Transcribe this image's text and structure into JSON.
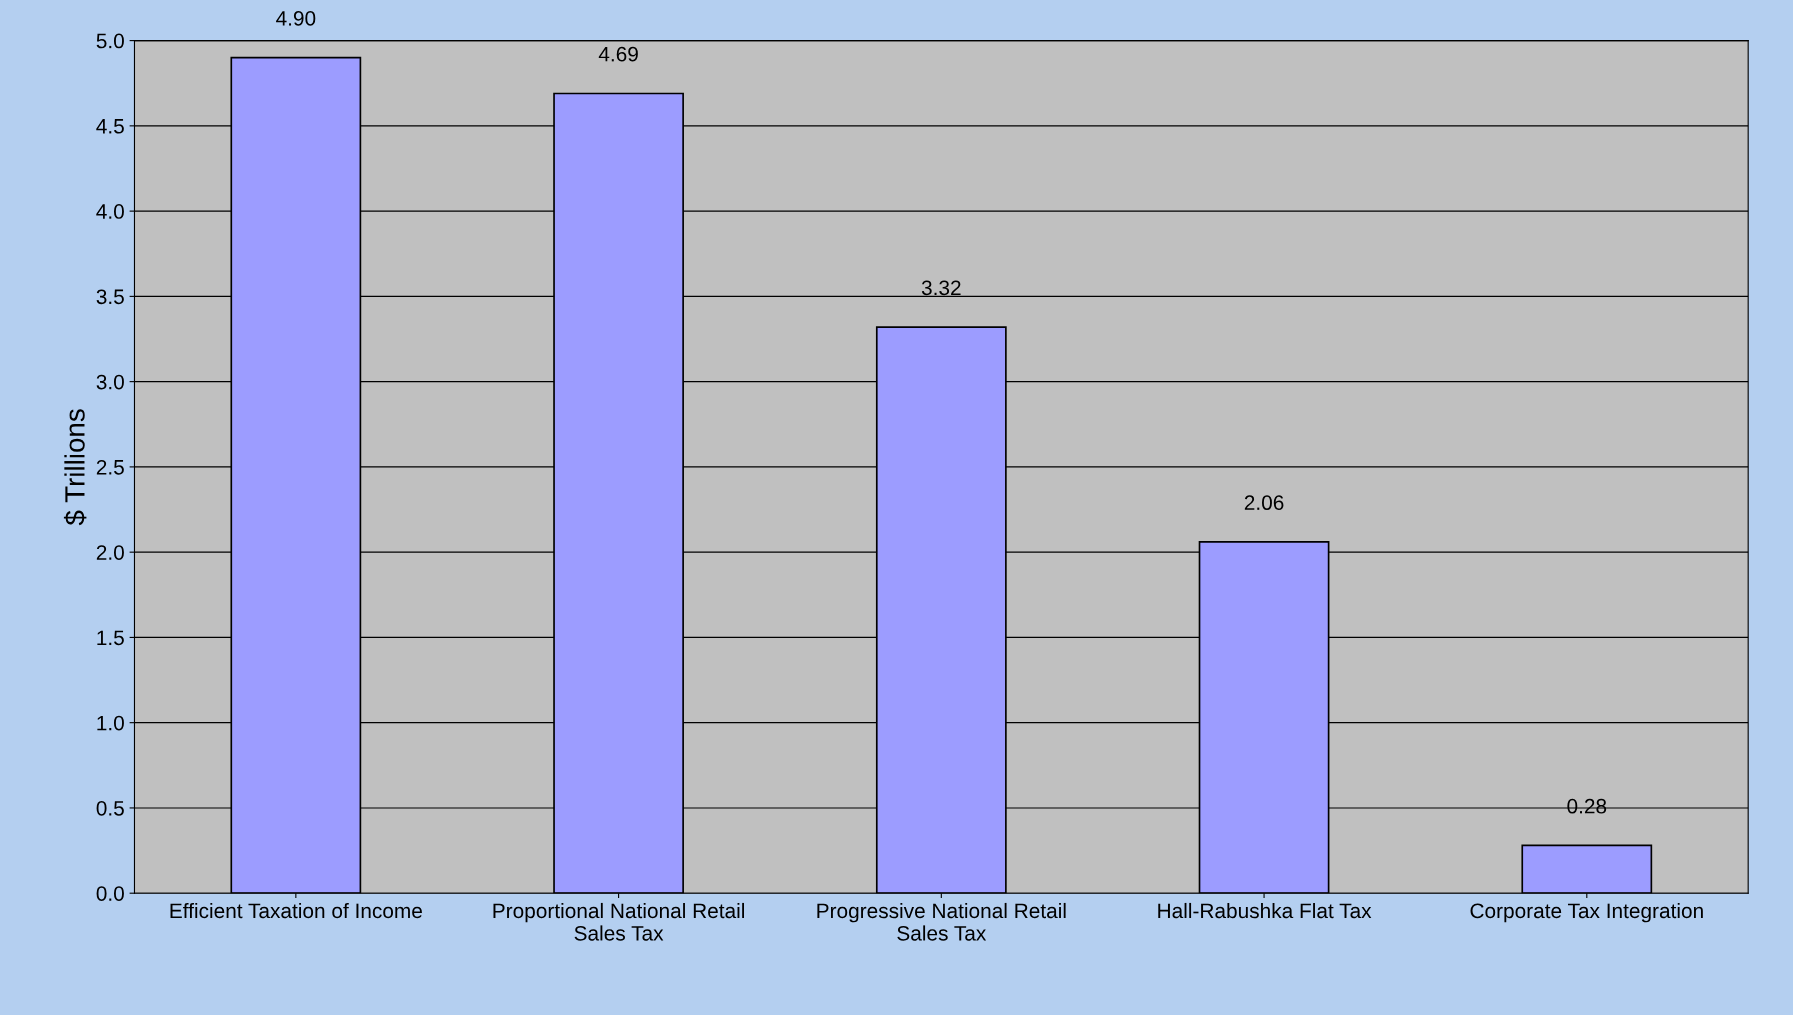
{
  "chart_data": {
    "type": "bar",
    "ylabel": "$ Trillions",
    "categories": [
      "Efficient Taxation of Income",
      "Proportional National Retail\nSales Tax",
      "Progressive National Retail\nSales Tax",
      "Hall-Rabushka Flat Tax",
      "Corporate Tax Integration"
    ],
    "values": [
      4.9,
      4.69,
      3.32,
      2.06,
      0.28
    ],
    "value_labels": [
      "4.90",
      "4.69",
      "3.32",
      "2.06",
      "0.28"
    ],
    "color": "#9c9cff",
    "ylim": [
      0,
      5
    ],
    "yticks": [
      {
        "value": 0,
        "label": "0.0"
      },
      {
        "value": 0.5,
        "label": "0.5"
      },
      {
        "value": 1,
        "label": "1.0"
      },
      {
        "value": 1.5,
        "label": "1.5"
      },
      {
        "value": 2,
        "label": "2.0"
      },
      {
        "value": 2.5,
        "label": "2.5"
      },
      {
        "value": 3,
        "label": "3.0"
      },
      {
        "value": 3.5,
        "label": "3.5"
      },
      {
        "value": 4,
        "label": "4.0"
      },
      {
        "value": 4.5,
        "label": "4.5"
      },
      {
        "value": 5,
        "label": "5.0"
      }
    ],
    "grid": "y",
    "legend": false
  }
}
